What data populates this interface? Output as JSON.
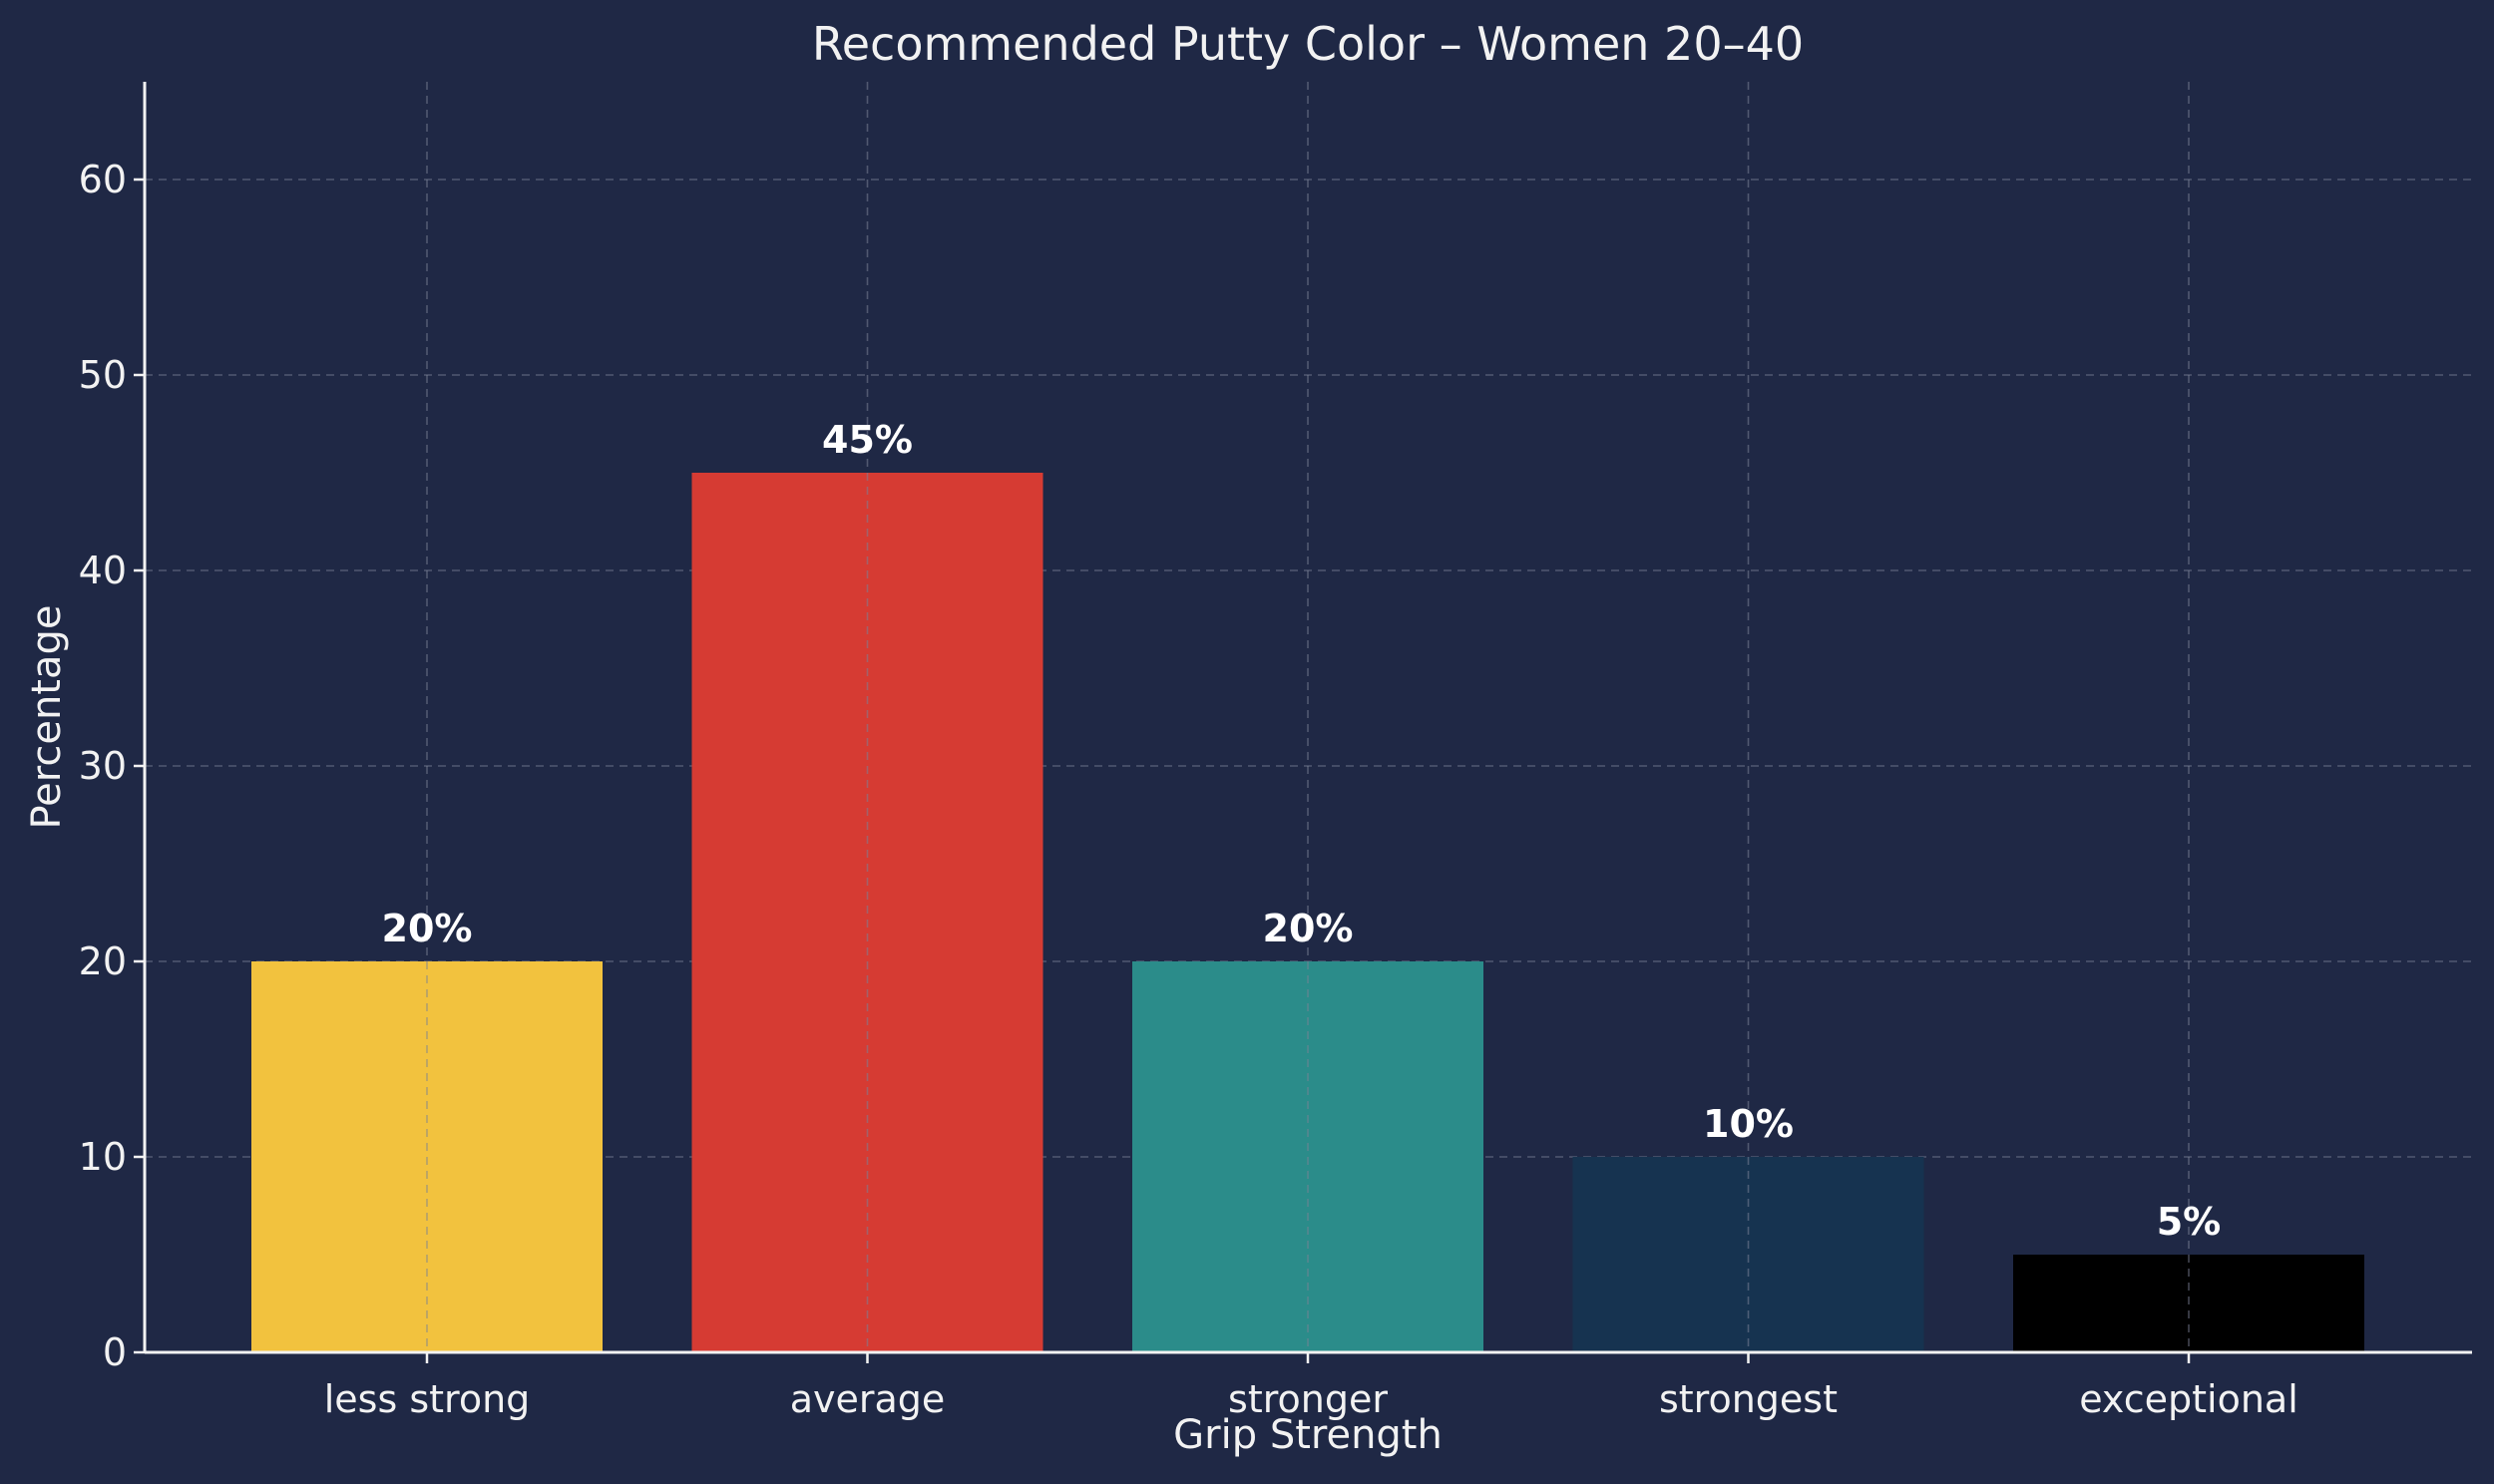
{
  "chart_data": {
    "type": "bar",
    "title": "Recommended Putty Color – Women 20–40",
    "xlabel": "Grip Strength",
    "ylabel": "Percentage",
    "categories": [
      "less strong",
      "average",
      "stronger",
      "strongest",
      "exceptional"
    ],
    "values": [
      20,
      45,
      20,
      10,
      5
    ],
    "value_labels": [
      "20%",
      "45%",
      "20%",
      "10%",
      "5%"
    ],
    "colors": [
      "#f2c23e",
      "#d63b33",
      "#2b8c8a",
      "#163350",
      "#000000"
    ],
    "ylim": [
      0,
      65
    ],
    "yticks": [
      0,
      10,
      20,
      30,
      40,
      50,
      60
    ],
    "grid": true,
    "background": "#1f2845"
  }
}
